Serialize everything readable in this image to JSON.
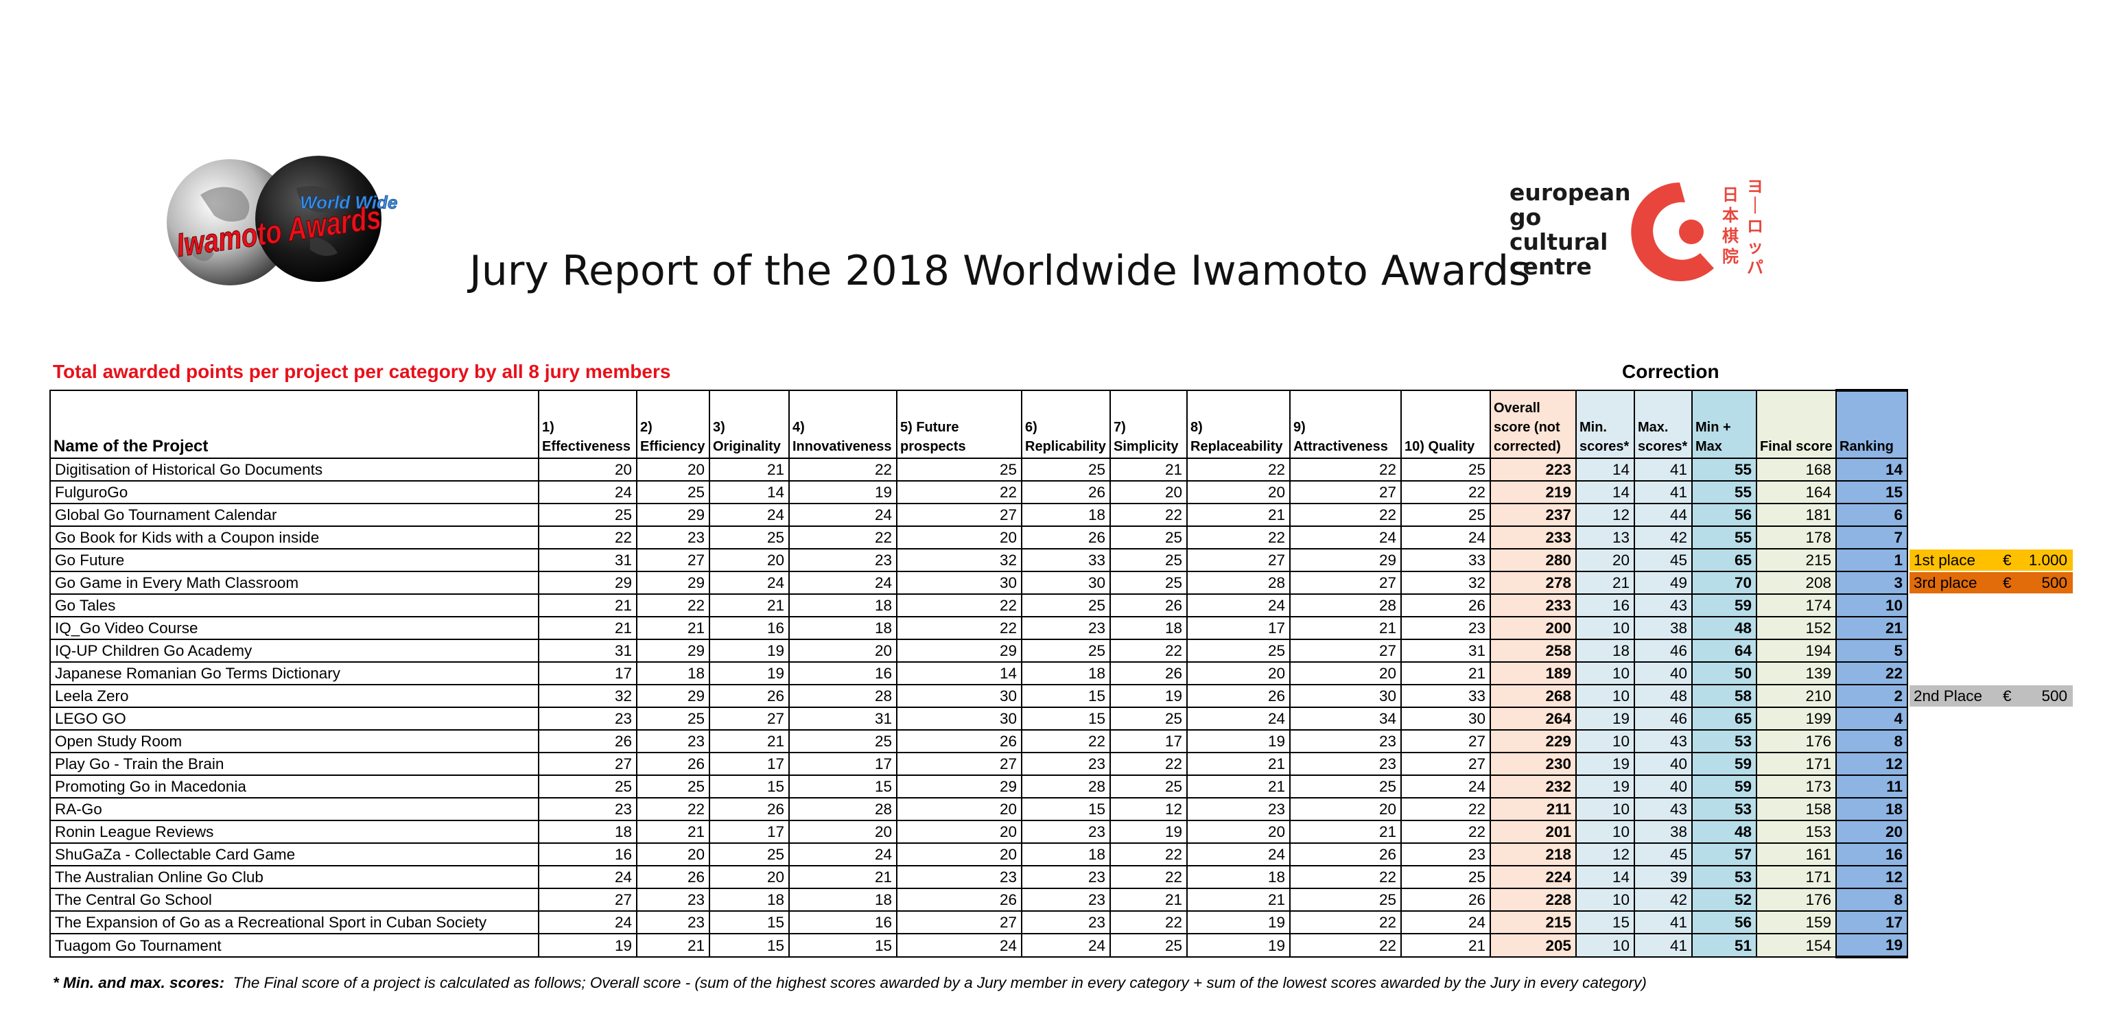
{
  "logo_left": {
    "line1": "World Wide",
    "line2": "Iwamoto Awards"
  },
  "logo_right": {
    "lines": [
      "european",
      "go",
      "cultural",
      "centre"
    ],
    "kanji": "日本棋院",
    "katakana": "ヨーロッパ",
    "brand_color": "#e8463c"
  },
  "title": "Jury Report of the 2018 Worldwide Iwamoto Awards",
  "subtitle": "Total awarded points per project per category by all 8 jury members",
  "correction_label": "Correction",
  "columns": [
    "Name of the Project",
    "1) Effectiveness",
    "2) Efficiency",
    "3) Originality",
    "4) Innovativeness",
    "5) Future prospects",
    "6) Replicability",
    "7) Simplicity",
    "8) Replaceability",
    "9) Attractiveness",
    "10) Quality",
    "Overall score (not corrected)",
    "Min. scores*",
    "Max. scores*",
    "Min + Max",
    "Final score",
    "Ranking"
  ],
  "rows": [
    {
      "name": "Digitisation of Historical Go Documents",
      "scores": [
        20,
        20,
        21,
        22,
        25,
        25,
        21,
        22,
        22,
        25
      ],
      "overall": 223,
      "min": 14,
      "max": 41,
      "minmax": 55,
      "final": 168,
      "rank": 14
    },
    {
      "name": "FulguroGo",
      "scores": [
        24,
        25,
        14,
        19,
        22,
        26,
        20,
        20,
        27,
        22
      ],
      "overall": 219,
      "min": 14,
      "max": 41,
      "minmax": 55,
      "final": 164,
      "rank": 15
    },
    {
      "name": "Global Go Tournament Calendar",
      "scores": [
        25,
        29,
        24,
        24,
        27,
        18,
        22,
        21,
        22,
        25
      ],
      "overall": 237,
      "min": 12,
      "max": 44,
      "minmax": 56,
      "final": 181,
      "rank": 6
    },
    {
      "name": "Go Book for Kids with a Coupon inside",
      "scores": [
        22,
        23,
        25,
        22,
        20,
        26,
        25,
        22,
        24,
        24
      ],
      "overall": 233,
      "min": 13,
      "max": 42,
      "minmax": 55,
      "final": 178,
      "rank": 7
    },
    {
      "name": "Go Future",
      "scores": [
        31,
        27,
        20,
        23,
        32,
        33,
        25,
        27,
        29,
        33
      ],
      "overall": 280,
      "min": 20,
      "max": 45,
      "minmax": 65,
      "final": 215,
      "rank": 1
    },
    {
      "name": "Go Game in Every Math Classroom",
      "scores": [
        29,
        29,
        24,
        24,
        30,
        30,
        25,
        28,
        27,
        32
      ],
      "overall": 278,
      "min": 21,
      "max": 49,
      "minmax": 70,
      "final": 208,
      "rank": 3
    },
    {
      "name": "Go Tales",
      "scores": [
        21,
        22,
        21,
        18,
        22,
        25,
        26,
        24,
        28,
        26
      ],
      "overall": 233,
      "min": 16,
      "max": 43,
      "minmax": 59,
      "final": 174,
      "rank": 10
    },
    {
      "name": "IQ_Go Video Course",
      "scores": [
        21,
        21,
        16,
        18,
        22,
        23,
        18,
        17,
        21,
        23
      ],
      "overall": 200,
      "min": 10,
      "max": 38,
      "minmax": 48,
      "final": 152,
      "rank": 21
    },
    {
      "name": "IQ-UP Children Go Academy",
      "scores": [
        31,
        29,
        19,
        20,
        29,
        25,
        22,
        25,
        27,
        31
      ],
      "overall": 258,
      "min": 18,
      "max": 46,
      "minmax": 64,
      "final": 194,
      "rank": 5
    },
    {
      "name": "Japanese Romanian Go Terms Dictionary",
      "scores": [
        17,
        18,
        19,
        16,
        14,
        18,
        26,
        20,
        20,
        21
      ],
      "overall": 189,
      "min": 10,
      "max": 40,
      "minmax": 50,
      "final": 139,
      "rank": 22
    },
    {
      "name": "Leela Zero",
      "scores": [
        32,
        29,
        26,
        28,
        30,
        15,
        19,
        26,
        30,
        33
      ],
      "overall": 268,
      "min": 10,
      "max": 48,
      "minmax": 58,
      "final": 210,
      "rank": 2
    },
    {
      "name": "LEGO GO",
      "scores": [
        23,
        25,
        27,
        31,
        30,
        15,
        25,
        24,
        34,
        30
      ],
      "overall": 264,
      "min": 19,
      "max": 46,
      "minmax": 65,
      "final": 199,
      "rank": 4
    },
    {
      "name": "Open Study Room",
      "scores": [
        26,
        23,
        21,
        25,
        26,
        22,
        17,
        19,
        23,
        27
      ],
      "overall": 229,
      "min": 10,
      "max": 43,
      "minmax": 53,
      "final": 176,
      "rank": 8
    },
    {
      "name": "Play Go - Train the Brain",
      "scores": [
        27,
        26,
        17,
        17,
        27,
        23,
        22,
        21,
        23,
        27
      ],
      "overall": 230,
      "min": 19,
      "max": 40,
      "minmax": 59,
      "final": 171,
      "rank": 12
    },
    {
      "name": "Promoting Go in Macedonia",
      "scores": [
        25,
        25,
        15,
        15,
        29,
        28,
        25,
        21,
        25,
        24
      ],
      "overall": 232,
      "min": 19,
      "max": 40,
      "minmax": 59,
      "final": 173,
      "rank": 11
    },
    {
      "name": "RA-Go",
      "scores": [
        23,
        22,
        26,
        28,
        20,
        15,
        12,
        23,
        20,
        22
      ],
      "overall": 211,
      "min": 10,
      "max": 43,
      "minmax": 53,
      "final": 158,
      "rank": 18
    },
    {
      "name": "Ronin League Reviews",
      "scores": [
        18,
        21,
        17,
        20,
        20,
        23,
        19,
        20,
        21,
        22
      ],
      "overall": 201,
      "min": 10,
      "max": 38,
      "minmax": 48,
      "final": 153,
      "rank": 20
    },
    {
      "name": "ShuGaZa - Collectable Card Game",
      "scores": [
        16,
        20,
        25,
        24,
        20,
        18,
        22,
        24,
        26,
        23
      ],
      "overall": 218,
      "min": 12,
      "max": 45,
      "minmax": 57,
      "final": 161,
      "rank": 16
    },
    {
      "name": "The Australian Online Go Club",
      "scores": [
        24,
        26,
        20,
        21,
        23,
        23,
        22,
        18,
        22,
        25
      ],
      "overall": 224,
      "min": 14,
      "max": 39,
      "minmax": 53,
      "final": 171,
      "rank": 12
    },
    {
      "name": "The Central Go School",
      "scores": [
        27,
        23,
        18,
        18,
        26,
        23,
        21,
        21,
        25,
        26
      ],
      "overall": 228,
      "min": 10,
      "max": 42,
      "minmax": 52,
      "final": 176,
      "rank": 8
    },
    {
      "name": "The Expansion of Go as a Recreational Sport in Cuban Society",
      "scores": [
        24,
        23,
        15,
        16,
        27,
        23,
        22,
        19,
        22,
        24
      ],
      "overall": 215,
      "min": 15,
      "max": 41,
      "minmax": 56,
      "final": 159,
      "rank": 17
    },
    {
      "name": "Tuagom Go Tournament",
      "scores": [
        19,
        21,
        15,
        15,
        24,
        24,
        25,
        19,
        22,
        21
      ],
      "overall": 205,
      "min": 10,
      "max": 41,
      "minmax": 51,
      "final": 154,
      "rank": 19
    }
  ],
  "prizes": [
    {
      "row": 4,
      "label": "1st place",
      "currency": "€",
      "amount": "1.000",
      "color": "#ffc000"
    },
    {
      "row": 5,
      "label": "3rd place",
      "currency": "€",
      "amount": "500",
      "color": "#e26b0a"
    },
    {
      "row": 10,
      "label": "2nd Place",
      "currency": "€",
      "amount": "500",
      "color": "#bfbfbf"
    }
  ],
  "footnote": {
    "lead": "* Min. and max. scores:",
    "text": "The Final score of a project is calculated as follows; Overall score - (sum of the highest scores awarded by a Jury member in every category + sum of the lowest scores awarded by the Jury in every category)"
  }
}
